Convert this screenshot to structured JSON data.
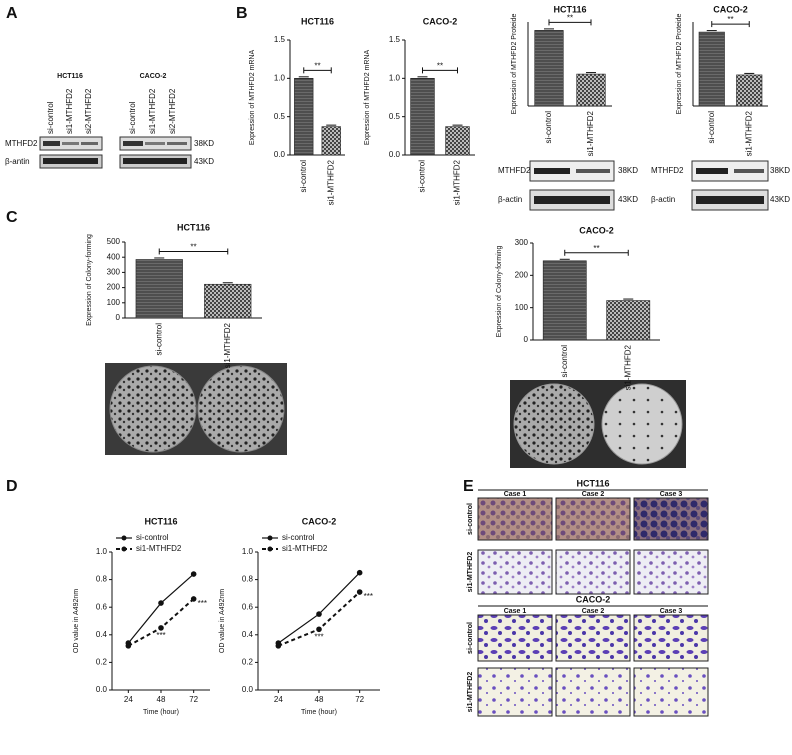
{
  "panels": [
    "A",
    "B",
    "C",
    "D",
    "E"
  ],
  "panel_a": {
    "cell_lines": [
      "HCT116",
      "CACO-2"
    ],
    "lanes": [
      "si-control",
      "si1-MTHFD2",
      "si2-MTHFD2"
    ],
    "rows": [
      "MTHFD2",
      "β-antin"
    ],
    "sizes": [
      "38KD",
      "43KD"
    ]
  },
  "panel_b_blot": {
    "rows": [
      "MTHFD2",
      "β-actin"
    ],
    "sizes": [
      "38KD",
      "43KD"
    ]
  },
  "panel_e": {
    "groups": [
      "HCT116",
      "CACO-2"
    ],
    "cases": [
      "Case 1",
      "Case 2",
      "Case 3"
    ],
    "rows": [
      "si-control",
      "si1-MTHFD2"
    ]
  },
  "chart_data": [
    {
      "type": "bar",
      "title": "HCT116",
      "y_label": "Expression of MTHFD2 mRNA",
      "categories": [
        "si-control",
        "si1-MTHFD2"
      ],
      "values": [
        1,
        0.37
      ],
      "ylim": [
        0,
        1.5
      ],
      "yticks": [
        {
          "value": 0,
          "label": "0.0"
        },
        0.5,
        {
          "value": 1,
          "label": "1.0"
        },
        1.5
      ],
      "annotation": "**"
    },
    {
      "type": "bar",
      "title": "CACO-2",
      "y_label": "Expression of MTHFD2 mRNA",
      "categories": [
        "si-control",
        "si1-MTHFD2"
      ],
      "values": [
        1,
        0.37
      ],
      "ylim": [
        0,
        1.5
      ],
      "yticks": [
        {
          "value": 0,
          "label": "0.0"
        },
        0.5,
        {
          "value": 1,
          "label": "1.0"
        },
        1.5
      ],
      "annotation": "**"
    },
    {
      "type": "bar",
      "title": "HCT116",
      "y_label": "Expression of MTHFD2 Proteide",
      "categories": [
        "si-control",
        "si1-MTHFD2"
      ],
      "values": [
        0.9,
        0.38
      ],
      "ylim": [
        0,
        1
      ],
      "annotation": "**"
    },
    {
      "type": "bar",
      "title": "CACO-2",
      "y_label": "Expression of MTHFD2 Proteide",
      "categories": [
        "si-control",
        "si1-MTHFD2"
      ],
      "values": [
        0.88,
        0.37
      ],
      "ylim": [
        0,
        1
      ],
      "annotation": "**"
    },
    {
      "type": "bar",
      "title": "HCT116",
      "y_label": "Expression of Colony-forming",
      "categories": [
        "si-control",
        "si1-MTHFD2"
      ],
      "values": [
        385,
        222
      ],
      "ylim": [
        0,
        500
      ],
      "yticks": [
        0,
        100,
        200,
        300,
        400,
        500
      ],
      "annotation": "**"
    },
    {
      "type": "bar",
      "title": "CACO-2",
      "y_label": "Expression of Colony-forming",
      "categories": [
        "si-control",
        "si1-MTHFD2"
      ],
      "values": [
        245,
        122
      ],
      "ylim": [
        0,
        300
      ],
      "yticks": [
        0,
        100,
        200,
        300
      ],
      "annotation": "**"
    },
    {
      "type": "line",
      "title": "HCT116",
      "x_label": "Time (hour)",
      "y_label": "OD value in A492nm",
      "x": [
        24,
        48,
        72
      ],
      "xlim": [
        12,
        84
      ],
      "xticks": [
        24,
        48,
        72
      ],
      "ylim": [
        0,
        1
      ],
      "yticks": [
        {
          "value": 0,
          "label": "0.0"
        },
        0.2,
        0.4,
        0.6,
        0.8,
        {
          "value": 1,
          "label": "1.0"
        }
      ],
      "annotation": "***",
      "series": [
        {
          "name": "si-control",
          "style": "solid",
          "values": [
            0.34,
            0.63,
            0.84
          ]
        },
        {
          "name": "si1-MTHFD2",
          "style": "dashed",
          "values": [
            0.32,
            0.45,
            0.66
          ]
        }
      ]
    },
    {
      "type": "line",
      "title": "CACO-2",
      "x_label": "Time (hour)",
      "y_label": "OD value in A492nm",
      "x": [
        24,
        48,
        72
      ],
      "xlim": [
        12,
        84
      ],
      "xticks": [
        24,
        48,
        72
      ],
      "ylim": [
        0,
        1
      ],
      "yticks": [
        {
          "value": 0,
          "label": "0.0"
        },
        0.2,
        0.4,
        0.6,
        0.8,
        {
          "value": 1,
          "label": "1.0"
        }
      ],
      "annotation": "***",
      "series": [
        {
          "name": "si-control",
          "style": "solid",
          "values": [
            0.34,
            0.55,
            0.85
          ]
        },
        {
          "name": "si1-MTHFD2",
          "style": "dashed",
          "values": [
            0.32,
            0.44,
            0.71
          ]
        }
      ]
    }
  ]
}
